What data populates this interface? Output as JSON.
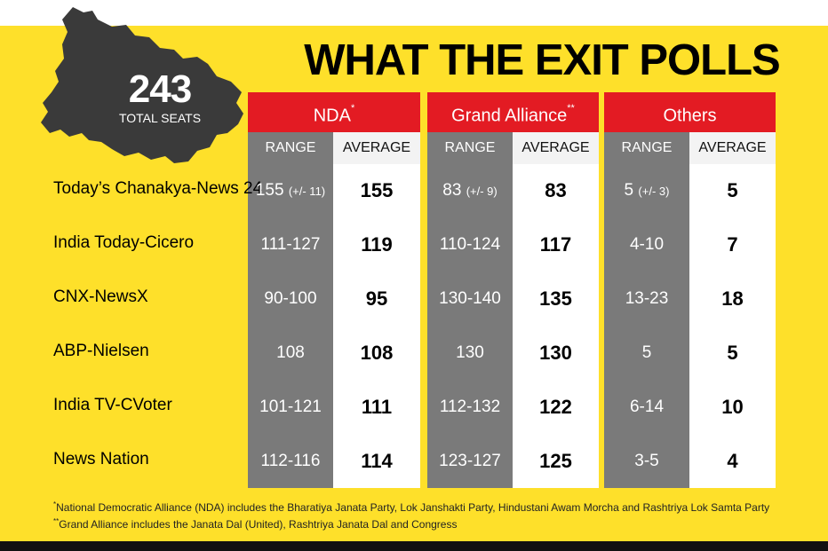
{
  "title": "WHAT THE EXIT POLLS SAY",
  "total": {
    "value": "243",
    "label": "TOTAL SEATS"
  },
  "groups": [
    {
      "name": "NDA",
      "mark": "*"
    },
    {
      "name": "Grand Alliance",
      "mark": "**"
    },
    {
      "name": "Others",
      "mark": ""
    }
  ],
  "subheaders": {
    "range": "RANGE",
    "average": "AVERAGE"
  },
  "rows": [
    {
      "pollster": "Today’s Chanakya-News 24",
      "nda": {
        "range": "155",
        "range_note": "(+/- 11)",
        "average": "155"
      },
      "ga": {
        "range": "83",
        "range_note": "(+/- 9)",
        "average": "83"
      },
      "others": {
        "range": "5",
        "range_note": "(+/- 3)",
        "average": "5"
      }
    },
    {
      "pollster": "India Today-Cicero",
      "nda": {
        "range": "111-127",
        "range_note": "",
        "average": "119"
      },
      "ga": {
        "range": "110-124",
        "range_note": "",
        "average": "117"
      },
      "others": {
        "range": "4-10",
        "range_note": "",
        "average": "7"
      }
    },
    {
      "pollster": "CNX-NewsX",
      "nda": {
        "range": "90-100",
        "range_note": "",
        "average": "95"
      },
      "ga": {
        "range": "130-140",
        "range_note": "",
        "average": "135"
      },
      "others": {
        "range": "13-23",
        "range_note": "",
        "average": "18"
      }
    },
    {
      "pollster": "ABP-Nielsen",
      "nda": {
        "range": "108",
        "range_note": "",
        "average": "108"
      },
      "ga": {
        "range": "130",
        "range_note": "",
        "average": "130"
      },
      "others": {
        "range": "5",
        "range_note": "",
        "average": "5"
      }
    },
    {
      "pollster": "India TV-CVoter",
      "nda": {
        "range": "101-121",
        "range_note": "",
        "average": "111"
      },
      "ga": {
        "range": "112-132",
        "range_note": "",
        "average": "122"
      },
      "others": {
        "range": "6-14",
        "range_note": "",
        "average": "10"
      }
    },
    {
      "pollster": "News Nation",
      "nda": {
        "range": "112-116",
        "range_note": "",
        "average": "114"
      },
      "ga": {
        "range": "123-127",
        "range_note": "",
        "average": "125"
      },
      "others": {
        "range": "3-5",
        "range_note": "",
        "average": "4"
      }
    }
  ],
  "footnotes": [
    {
      "mark": "*",
      "text": "National Democratic Alliance (NDA) includes the Bharatiya Janata Party, Lok Janshakti Party, Hindustani Awam Morcha and Rashtriya Lok Samta Party"
    },
    {
      "mark": "**",
      "text": "Grand Alliance includes the Janata Dal (United), Rashtriya Janata Dal and Congress"
    }
  ],
  "colors": {
    "background": "#fee02a",
    "header": "#e31b23",
    "range": "#7a7a7a",
    "map": "#3a3a3a",
    "bar": "#111111"
  },
  "chart_data": {
    "type": "table",
    "title": "WHAT THE EXIT POLLS SAY",
    "columns": [
      "NDA RANGE",
      "NDA AVERAGE",
      "Grand Alliance RANGE",
      "Grand Alliance AVERAGE",
      "Others RANGE",
      "Others AVERAGE"
    ],
    "categories": [
      "Today’s Chanakya-News 24",
      "India Today-Cicero",
      "CNX-NewsX",
      "ABP-Nielsen",
      "India TV-CVoter",
      "News Nation"
    ],
    "series": [
      {
        "name": "NDA",
        "values": [
          155,
          119,
          95,
          108,
          111,
          114
        ]
      },
      {
        "name": "Grand Alliance",
        "values": [
          83,
          117,
          135,
          130,
          122,
          125
        ]
      },
      {
        "name": "Others",
        "values": [
          5,
          7,
          18,
          5,
          10,
          4
        ]
      }
    ]
  }
}
